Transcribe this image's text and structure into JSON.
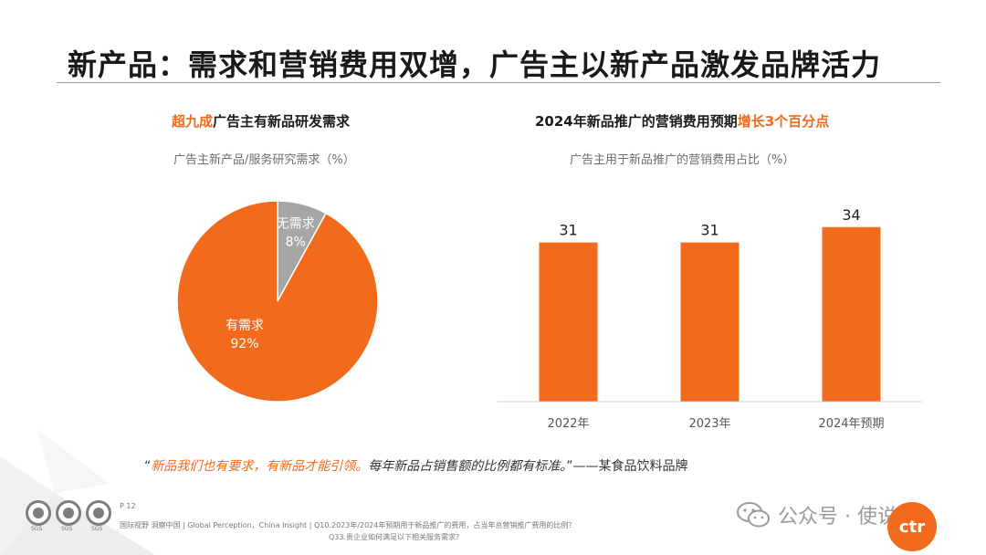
{
  "title": "新产品：需求和营销费用双增，广告主以新产品激发品牌活力",
  "left_panel": {
    "heading_highlight": "超九成",
    "heading_rest": "广告主有新品研发需求",
    "caption": "广告主新产品/服务研究需求（%）"
  },
  "right_panel": {
    "heading_main": "2024年新品推广的营销费用预期",
    "heading_highlight": "增长3个百分点",
    "caption": "广告主用于新品推广的营销费用占比（%）"
  },
  "chart_data": [
    {
      "type": "pie",
      "slices": [
        {
          "label": "无需求",
          "value": 8,
          "value_label": "8%",
          "color": "#a6a6a6"
        },
        {
          "label": "有需求",
          "value": 92,
          "value_label": "92%",
          "color": "#f26a1b"
        }
      ]
    },
    {
      "type": "bar",
      "categories": [
        "2022年",
        "2023年",
        "2024年预期"
      ],
      "values": [
        31,
        31,
        34
      ],
      "color": "#f26a1b",
      "ylim": [
        0,
        40
      ]
    }
  ],
  "quote": {
    "open": "“",
    "orange": "新品我们也有要求，有新品才能引领。",
    "body": "每年新品占销售额的比例都有标准。",
    "close": "”",
    "source": "——某食品饮料品牌"
  },
  "footer": {
    "sgs_labels": [
      "SGS",
      "SGS",
      "SGS"
    ],
    "page": "P 12",
    "line1": "国际视野  洞察中国 |  Global Perception，China Insight | Q10.2023年/2024年预期用于新品推广的费用，占当年总营销推广费用的比例？",
    "line2": "Q33.贵企业如何满足以下相关服务需求?"
  },
  "watermark": {
    "account": "公众号 · 使说",
    "logo": "ctr"
  },
  "colors": {
    "accent": "#f26a1b",
    "gray": "#a6a6a6"
  }
}
